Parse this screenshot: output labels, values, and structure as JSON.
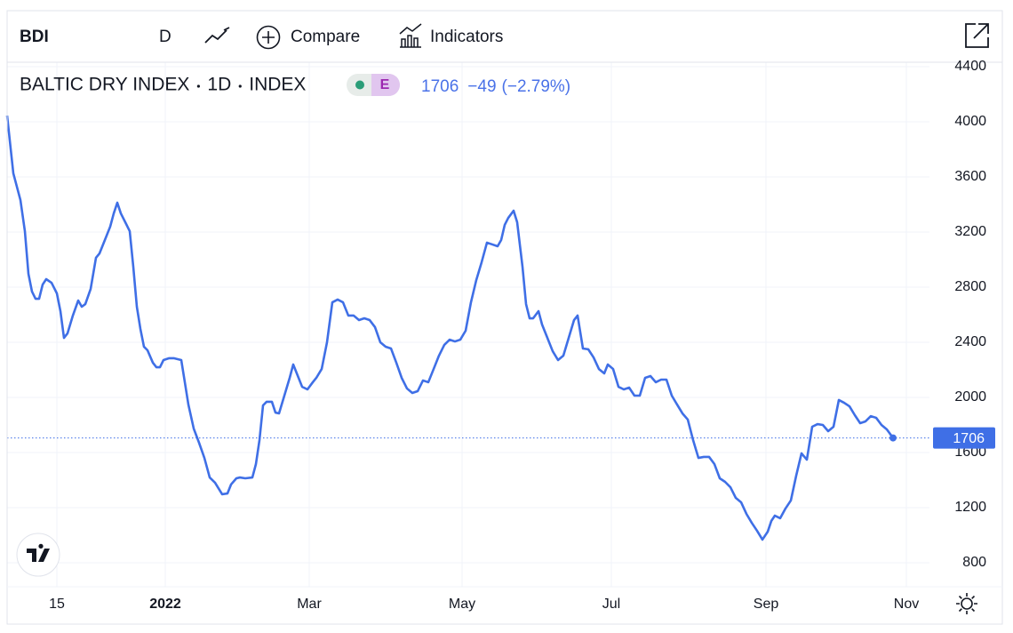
{
  "header": {
    "symbol": "BDI",
    "interval": "D",
    "compare": "Compare",
    "indicators": "Indicators"
  },
  "legend": {
    "name": "BALTIC DRY INDEX",
    "interval": "1D",
    "exchange": "INDEX",
    "badge": "E",
    "price": "1706",
    "change": "−49",
    "change_pct": "(−2.79%)"
  },
  "chart_data": {
    "type": "line",
    "x": [
      0,
      1.75,
      3.75,
      5,
      6,
      7,
      8,
      9,
      10,
      11,
      12.5,
      14,
      15,
      16,
      17,
      18.5,
      20,
      21,
      22,
      23.5,
      25,
      26,
      27.5,
      29,
      30,
      31,
      32,
      33.5,
      34.5,
      35.5,
      36.5,
      37.5,
      38.5,
      39.5,
      41,
      42,
      43,
      44,
      45.5,
      47,
      49,
      50,
      51,
      52.5,
      54,
      55.5,
      57,
      58.5,
      60.5,
      62,
      63,
      64.5,
      65.5,
      67,
      69,
      70,
      71,
      72,
      73,
      74.5,
      75.5,
      76.5,
      78,
      79.5,
      80.5,
      81.5,
      83,
      84.5,
      86,
      87,
      88.5,
      90,
      91.5,
      93,
      94.5,
      96,
      97.5,
      99,
      100.5,
      102,
      103.5,
      105,
      106.5,
      108,
      109.5,
      111,
      112.5,
      114,
      115.5,
      117,
      118.5,
      120,
      121.5,
      123,
      124.5,
      126,
      127.5,
      129,
      130.5,
      132,
      133.5,
      135,
      136.5,
      138,
      139,
      140,
      141,
      142.5,
      143.5,
      145,
      146,
      147,
      148,
      149.5,
      150.5,
      152,
      153.5,
      155,
      156.5,
      158,
      159.5,
      160.5,
      162,
      163.5,
      165,
      166.5,
      168,
      169,
      170.5,
      172,
      173.5,
      175,
      176.5,
      178,
      179.5,
      181,
      182.5,
      184,
      185.5,
      187,
      188.5,
      190,
      191.5,
      193,
      194.5,
      196,
      197.5,
      199,
      200.5,
      202,
      203.5,
      205,
      206.5,
      208,
      209.5,
      211,
      212.5,
      214,
      215,
      216,
      217.5,
      219,
      220.5,
      222,
      223.5,
      225,
      226.5,
      228,
      229.5,
      231,
      232.5,
      234,
      235.5,
      237,
      238.5,
      240,
      241.5,
      243,
      244.5,
      246,
      247.5,
      249.25
    ],
    "series": [
      {
        "name": "BALTIC DRY INDEX",
        "color": "#3f6fe6",
        "values": [
          4045,
          3626,
          3432,
          3206,
          2897,
          2768,
          2716,
          2716,
          2819,
          2858,
          2832,
          2755,
          2626,
          2432,
          2465,
          2594,
          2703,
          2658,
          2677,
          2787,
          3013,
          3045,
          3142,
          3239,
          3335,
          3413,
          3335,
          3258,
          3206,
          2948,
          2658,
          2497,
          2368,
          2342,
          2252,
          2219,
          2219,
          2271,
          2284,
          2284,
          2271,
          2110,
          1948,
          1774,
          1671,
          1561,
          1419,
          1381,
          1297,
          1303,
          1368,
          1413,
          1419,
          1413,
          1419,
          1516,
          1690,
          1942,
          1968,
          1968,
          1890,
          1884,
          2013,
          2142,
          2239,
          2174,
          2077,
          2058,
          2110,
          2142,
          2206,
          2400,
          2690,
          2710,
          2690,
          2594,
          2594,
          2561,
          2574,
          2561,
          2510,
          2400,
          2368,
          2355,
          2252,
          2142,
          2065,
          2032,
          2045,
          2123,
          2110,
          2206,
          2303,
          2381,
          2419,
          2406,
          2419,
          2484,
          2690,
          2852,
          2981,
          3123,
          3110,
          3097,
          3142,
          3252,
          3303,
          3355,
          3271,
          2948,
          2677,
          2574,
          2574,
          2626,
          2529,
          2432,
          2335,
          2271,
          2303,
          2432,
          2561,
          2594,
          2355,
          2349,
          2290,
          2206,
          2174,
          2239,
          2206,
          2077,
          2058,
          2071,
          2013,
          2013,
          2142,
          2155,
          2110,
          2129,
          2129,
          2013,
          1948,
          1884,
          1839,
          1690,
          1561,
          1568,
          1568,
          1516,
          1413,
          1387,
          1348,
          1271,
          1239,
          1155,
          1090,
          1032,
          968,
          1026,
          1103,
          1142,
          1123,
          1194,
          1252,
          1432,
          1594,
          1548,
          1787,
          1806,
          1800,
          1755,
          1787,
          1981,
          1961,
          1935,
          1871,
          1813,
          1826,
          1864,
          1852,
          1800,
          1768,
          1706
        ]
      }
    ],
    "xlim": [
      0,
      258
    ],
    "xticks": [
      {
        "value": 14,
        "label": "15"
      },
      {
        "value": 44.5,
        "label": "2022"
      },
      {
        "value": 85,
        "label": "Mar"
      },
      {
        "value": 128,
        "label": "May"
      },
      {
        "value": 170,
        "label": "Jul"
      },
      {
        "value": 213.5,
        "label": "Sep"
      },
      {
        "value": 253,
        "label": "Nov"
      }
    ],
    "ylim": [
      800,
      4400
    ],
    "yticks": [
      800,
      1200,
      1600,
      2000,
      2400,
      2800,
      3200,
      3600,
      4000,
      4400
    ],
    "grid": true
  }
}
